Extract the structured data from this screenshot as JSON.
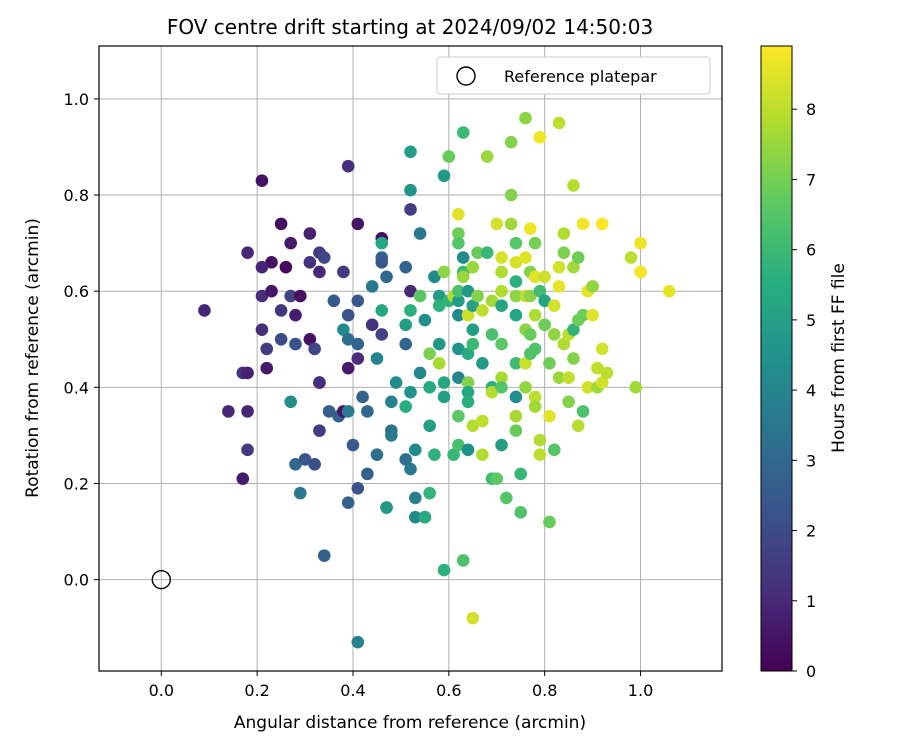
{
  "chart_data": {
    "type": "scatter",
    "title": "FOV centre drift starting at 2024/09/02 14:50:03",
    "xlabel": "Angular distance from reference (arcmin)",
    "ylabel": "Rotation from reference (arcmin)",
    "xlim": [
      -0.13,
      1.17
    ],
    "ylim": [
      -0.19,
      1.11
    ],
    "xticks": [
      0.0,
      0.2,
      0.4,
      0.6,
      0.8,
      1.0
    ],
    "xtick_labels": [
      "0.0",
      "0.2",
      "0.4",
      "0.6",
      "0.8",
      "1.0"
    ],
    "yticks": [
      0.0,
      0.2,
      0.4,
      0.6,
      0.8,
      1.0
    ],
    "ytick_labels": [
      "0.0",
      "0.2",
      "0.4",
      "0.6",
      "0.8",
      "1.0"
    ],
    "grid": true,
    "legend": {
      "label": "Reference platepar",
      "placement": "top-right"
    },
    "reference_point": {
      "x": 0.0,
      "y": 0.0
    },
    "colorbar": {
      "label": "Hours from first FF file",
      "range": [
        0,
        8.9
      ],
      "ticks": [
        0,
        1,
        2,
        3,
        4,
        5,
        6,
        7,
        8
      ],
      "tick_labels": [
        "0",
        "1",
        "2",
        "3",
        "4",
        "5",
        "6",
        "7",
        "8"
      ],
      "colormap": "viridis"
    },
    "points": [
      [
        0.21,
        0.83,
        0.4
      ],
      [
        0.39,
        0.86,
        1.2
      ],
      [
        0.25,
        0.74,
        0.3
      ],
      [
        0.31,
        0.72,
        0.8
      ],
      [
        0.41,
        0.74,
        0.5
      ],
      [
        0.46,
        0.71,
        0.3
      ],
      [
        0.18,
        0.68,
        1.0
      ],
      [
        0.27,
        0.7,
        0.6
      ],
      [
        0.23,
        0.66,
        0.4
      ],
      [
        0.21,
        0.65,
        0.9
      ],
      [
        0.26,
        0.65,
        0.2
      ],
      [
        0.31,
        0.66,
        1.3
      ],
      [
        0.33,
        0.68,
        1.6
      ],
      [
        0.34,
        0.67,
        1.9
      ],
      [
        0.33,
        0.64,
        1.0
      ],
      [
        0.38,
        0.64,
        1.5
      ],
      [
        0.09,
        0.56,
        0.9
      ],
      [
        0.21,
        0.59,
        1.1
      ],
      [
        0.23,
        0.6,
        0.5
      ],
      [
        0.25,
        0.56,
        1.4
      ],
      [
        0.27,
        0.59,
        1.8
      ],
      [
        0.28,
        0.55,
        0.7
      ],
      [
        0.29,
        0.59,
        0.4
      ],
      [
        0.21,
        0.52,
        1.2
      ],
      [
        0.22,
        0.48,
        1.6
      ],
      [
        0.25,
        0.5,
        2.0
      ],
      [
        0.28,
        0.49,
        2.2
      ],
      [
        0.31,
        0.5,
        0.4
      ],
      [
        0.32,
        0.48,
        1.9
      ],
      [
        0.36,
        0.58,
        2.5
      ],
      [
        0.39,
        0.55,
        2.2
      ],
      [
        0.41,
        0.58,
        2.4
      ],
      [
        0.38,
        0.52,
        4.3
      ],
      [
        0.39,
        0.5,
        3.2
      ],
      [
        0.41,
        0.49,
        2.9
      ],
      [
        0.41,
        0.46,
        1.1
      ],
      [
        0.17,
        0.43,
        1.3
      ],
      [
        0.18,
        0.43,
        0.8
      ],
      [
        0.22,
        0.44,
        0.6
      ],
      [
        0.39,
        0.44,
        0.7
      ],
      [
        0.14,
        0.35,
        1.0
      ],
      [
        0.18,
        0.35,
        0.9
      ],
      [
        0.33,
        0.41,
        1.4
      ],
      [
        0.33,
        0.41,
        1.1
      ],
      [
        0.35,
        0.35,
        2.6
      ],
      [
        0.37,
        0.34,
        2.8
      ],
      [
        0.38,
        0.35,
        0.5
      ],
      [
        0.39,
        0.35,
        3.7
      ],
      [
        0.27,
        0.37,
        4.3
      ],
      [
        0.42,
        0.38,
        2.8
      ],
      [
        0.43,
        0.35,
        3.0
      ],
      [
        0.33,
        0.31,
        1.6
      ],
      [
        0.18,
        0.27,
        1.5
      ],
      [
        0.28,
        0.24,
        3.0
      ],
      [
        0.3,
        0.25,
        2.4
      ],
      [
        0.32,
        0.24,
        2.1
      ],
      [
        0.17,
        0.21,
        0.7
      ],
      [
        0.29,
        0.18,
        3.5
      ],
      [
        0.39,
        0.16,
        2.7
      ],
      [
        0.41,
        0.19,
        2.3
      ],
      [
        0.34,
        0.05,
        2.7
      ],
      [
        0.41,
        -0.13,
        3.9
      ],
      [
        0.4,
        0.28,
        2.5
      ],
      [
        0.43,
        0.22,
        2.7
      ],
      [
        0.45,
        0.26,
        3.2
      ],
      [
        0.46,
        0.67,
        2.8
      ],
      [
        0.46,
        0.66,
        2.4
      ],
      [
        0.47,
        0.63,
        3.0
      ],
      [
        0.44,
        0.61,
        3.6
      ],
      [
        0.44,
        0.53,
        1.3
      ],
      [
        0.46,
        0.51,
        1.7
      ],
      [
        0.46,
        0.56,
        5.3
      ],
      [
        0.45,
        0.46,
        4.0
      ],
      [
        0.46,
        0.7,
        5.3
      ],
      [
        0.52,
        0.77,
        1.6
      ],
      [
        0.52,
        0.89,
        4.9
      ],
      [
        0.52,
        0.81,
        4.6
      ],
      [
        0.51,
        0.65,
        2.9
      ],
      [
        0.51,
        0.49,
        3.0
      ],
      [
        0.52,
        0.6,
        1.0
      ],
      [
        0.52,
        0.56,
        5.6
      ],
      [
        0.51,
        0.53,
        5.0
      ],
      [
        0.49,
        0.41,
        4.3
      ],
      [
        0.48,
        0.37,
        3.9
      ],
      [
        0.48,
        0.31,
        3.4
      ],
      [
        0.48,
        0.3,
        3.5
      ],
      [
        0.51,
        0.36,
        5.5
      ],
      [
        0.52,
        0.39,
        4.5
      ],
      [
        0.51,
        0.25,
        3.3
      ],
      [
        0.52,
        0.23,
        3.5
      ],
      [
        0.53,
        0.27,
        4.2
      ],
      [
        0.47,
        0.15,
        5.1
      ],
      [
        0.47,
        0.15,
        4.7
      ],
      [
        0.53,
        0.17,
        3.8
      ],
      [
        0.53,
        0.13,
        4.2
      ],
      [
        0.55,
        0.13,
        4.3
      ],
      [
        0.56,
        0.18,
        5.8
      ],
      [
        0.55,
        0.13,
        5.4
      ],
      [
        0.54,
        0.59,
        6.6
      ],
      [
        0.55,
        0.54,
        4.4
      ],
      [
        0.54,
        0.43,
        4.1
      ],
      [
        0.54,
        0.72,
        3.6
      ],
      [
        0.56,
        0.47,
        7.1
      ],
      [
        0.56,
        0.4,
        5.4
      ],
      [
        0.56,
        0.32,
        5.0
      ],
      [
        0.57,
        0.26,
        5.7
      ],
      [
        0.57,
        0.63,
        4.2
      ],
      [
        0.58,
        0.59,
        4.8
      ],
      [
        0.58,
        0.57,
        5.7
      ],
      [
        0.59,
        0.64,
        7.3
      ],
      [
        0.6,
        0.88,
        6.8
      ],
      [
        0.59,
        0.84,
        4.8
      ],
      [
        0.6,
        0.58,
        5.8
      ],
      [
        0.58,
        0.49,
        4.7
      ],
      [
        0.58,
        0.45,
        7.7
      ],
      [
        0.59,
        0.41,
        5.3
      ],
      [
        0.59,
        0.38,
        5.0
      ],
      [
        0.61,
        0.26,
        5.9
      ],
      [
        0.59,
        0.02,
        5.6
      ],
      [
        0.61,
        0.59,
        7.9
      ],
      [
        0.62,
        0.58,
        4.9
      ],
      [
        0.62,
        0.72,
        6.9
      ],
      [
        0.62,
        0.7,
        6.5
      ],
      [
        0.62,
        0.76,
        8.5
      ],
      [
        0.62,
        0.6,
        6.3
      ],
      [
        0.62,
        0.55,
        4.2
      ],
      [
        0.62,
        0.48,
        4.6
      ],
      [
        0.62,
        0.42,
        4.0
      ],
      [
        0.62,
        0.34,
        6.6
      ],
      [
        0.62,
        0.28,
        6.2
      ],
      [
        0.63,
        0.93,
        6.0
      ],
      [
        0.63,
        0.67,
        4.2
      ],
      [
        0.63,
        0.64,
        6.0
      ],
      [
        0.63,
        0.63,
        7.5
      ],
      [
        0.64,
        0.6,
        4.7
      ],
      [
        0.64,
        0.55,
        8.2
      ],
      [
        0.64,
        0.47,
        5.5
      ],
      [
        0.64,
        0.41,
        7.2
      ],
      [
        0.64,
        0.39,
        5.3
      ],
      [
        0.64,
        0.37,
        5.6
      ],
      [
        0.64,
        0.27,
        4.5
      ],
      [
        0.63,
        0.04,
        6.3
      ],
      [
        0.65,
        0.65,
        7.5
      ],
      [
        0.65,
        0.57,
        5.1
      ],
      [
        0.65,
        0.52,
        5.0
      ],
      [
        0.65,
        0.49,
        6.0
      ],
      [
        0.65,
        0.32,
        7.9
      ],
      [
        0.65,
        -0.08,
        8.3
      ],
      [
        0.66,
        0.68,
        6.8
      ],
      [
        0.66,
        0.59,
        7.2
      ],
      [
        0.67,
        0.56,
        8.1
      ],
      [
        0.67,
        0.45,
        4.8
      ],
      [
        0.67,
        0.33,
        8.0
      ],
      [
        0.67,
        0.26,
        7.8
      ],
      [
        0.68,
        0.88,
        7.5
      ],
      [
        0.68,
        0.68,
        5.9
      ],
      [
        0.69,
        0.58,
        7.6
      ],
      [
        0.69,
        0.51,
        6.3
      ],
      [
        0.69,
        0.4,
        5.6
      ],
      [
        0.69,
        0.39,
        7.9
      ],
      [
        0.69,
        0.21,
        6.1
      ],
      [
        0.7,
        0.21,
        6.6
      ],
      [
        0.7,
        0.74,
        8.3
      ],
      [
        0.71,
        0.67,
        8.4
      ],
      [
        0.71,
        0.64,
        7.8
      ],
      [
        0.71,
        0.6,
        7.9
      ],
      [
        0.71,
        0.57,
        5.2
      ],
      [
        0.71,
        0.49,
        6.6
      ],
      [
        0.71,
        0.42,
        7.7
      ],
      [
        0.71,
        0.4,
        6.5
      ],
      [
        0.71,
        0.28,
        5.0
      ],
      [
        0.72,
        0.17,
        6.5
      ],
      [
        0.73,
        0.91,
        7.2
      ],
      [
        0.73,
        0.8,
        7.2
      ],
      [
        0.73,
        0.74,
        7.6
      ],
      [
        0.74,
        0.7,
        6.5
      ],
      [
        0.74,
        0.66,
        8.4
      ],
      [
        0.74,
        0.62,
        5.6
      ],
      [
        0.74,
        0.59,
        7.3
      ],
      [
        0.74,
        0.55,
        5.2
      ],
      [
        0.74,
        0.45,
        6.1
      ],
      [
        0.74,
        0.38,
        4.3
      ],
      [
        0.74,
        0.34,
        7.7
      ],
      [
        0.74,
        0.31,
        6.8
      ],
      [
        0.75,
        0.14,
        6.4
      ],
      [
        0.75,
        0.22,
        5.9
      ],
      [
        0.76,
        0.96,
        7.3
      ],
      [
        0.76,
        0.67,
        8.5
      ],
      [
        0.76,
        0.59,
        8.0
      ],
      [
        0.76,
        0.52,
        7.3
      ],
      [
        0.76,
        0.45,
        8.2
      ],
      [
        0.76,
        0.4,
        7.4
      ],
      [
        0.77,
        0.73,
        8.7
      ],
      [
        0.77,
        0.64,
        7.2
      ],
      [
        0.77,
        0.59,
        7.3
      ],
      [
        0.77,
        0.51,
        6.8
      ],
      [
        0.77,
        0.47,
        6.4
      ],
      [
        0.78,
        0.7,
        7.0
      ],
      [
        0.78,
        0.63,
        8.5
      ],
      [
        0.78,
        0.55,
        7.8
      ],
      [
        0.78,
        0.48,
        6.4
      ],
      [
        0.78,
        0.38,
        8.0
      ],
      [
        0.78,
        0.36,
        7.6
      ],
      [
        0.79,
        0.92,
        8.7
      ],
      [
        0.79,
        0.6,
        6.1
      ],
      [
        0.79,
        0.26,
        8.0
      ],
      [
        0.79,
        0.29,
        7.8
      ],
      [
        0.8,
        0.63,
        8.2
      ],
      [
        0.8,
        0.58,
        5.2
      ],
      [
        0.8,
        0.53,
        6.9
      ],
      [
        0.81,
        0.45,
        6.9
      ],
      [
        0.81,
        0.12,
        6.8
      ],
      [
        0.81,
        0.34,
        8.5
      ],
      [
        0.82,
        0.57,
        8.3
      ],
      [
        0.82,
        0.51,
        7.4
      ],
      [
        0.82,
        0.27,
        6.5
      ],
      [
        0.83,
        0.95,
        8.0
      ],
      [
        0.83,
        0.65,
        8.3
      ],
      [
        0.83,
        0.61,
        8.6
      ],
      [
        0.83,
        0.42,
        7.5
      ],
      [
        0.84,
        0.72,
        7.8
      ],
      [
        0.84,
        0.68,
        7.1
      ],
      [
        0.84,
        0.49,
        7.8
      ],
      [
        0.85,
        0.51,
        8.0
      ],
      [
        0.85,
        0.42,
        8.1
      ],
      [
        0.85,
        0.37,
        7.2
      ],
      [
        0.86,
        0.65,
        7.6
      ],
      [
        0.86,
        0.52,
        5.8
      ],
      [
        0.86,
        0.46,
        7.2
      ],
      [
        0.86,
        0.82,
        7.9
      ],
      [
        0.87,
        0.67,
        6.9
      ],
      [
        0.87,
        0.54,
        6.9
      ],
      [
        0.87,
        0.32,
        7.9
      ],
      [
        0.88,
        0.74,
        8.7
      ],
      [
        0.88,
        0.35,
        6.3
      ],
      [
        0.88,
        0.55,
        6.9
      ],
      [
        0.89,
        0.6,
        8.5
      ],
      [
        0.89,
        0.4,
        8.3
      ],
      [
        0.9,
        0.61,
        7.4
      ],
      [
        0.9,
        0.55,
        8.5
      ],
      [
        0.91,
        0.44,
        8.1
      ],
      [
        0.91,
        0.4,
        7.6
      ],
      [
        0.92,
        0.74,
        8.9
      ],
      [
        0.92,
        0.41,
        8.3
      ],
      [
        0.92,
        0.48,
        8.3
      ],
      [
        0.93,
        0.43,
        8.0
      ],
      [
        0.98,
        0.67,
        8.0
      ],
      [
        0.99,
        0.4,
        7.6
      ],
      [
        1.0,
        0.7,
        8.7
      ],
      [
        1.0,
        0.64,
        8.8
      ],
      [
        1.06,
        0.6,
        8.6
      ]
    ]
  }
}
